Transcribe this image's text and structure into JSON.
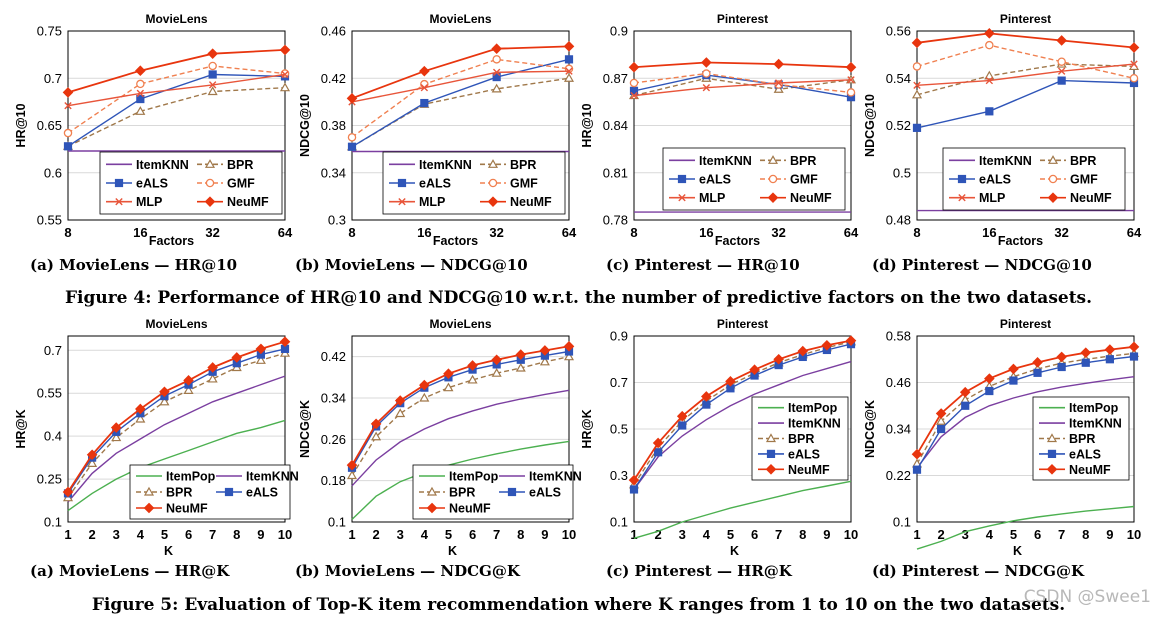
{
  "figure4_caption": "Figure 4: Performance of HR@10 and NDCG@10 w.r.t. the number of predictive factors on the two datasets.",
  "figure5_caption": "Figure 5: Evaluation of Top-K item recommendation where K ranges from 1 to 10 on the two datasets.",
  "watermark": "CSDN @Swee1",
  "subcaptions": [
    "(a) MovieLens — HR@10",
    "(b) MovieLens — NDCG@10",
    "(c) Pinterest — HR@10",
    "(d) Pinterest — NDCG@10",
    "(a) MovieLens — HR@K",
    "(b) MovieLens — NDCG@K",
    "(c) Pinterest — HR@K",
    "(d) Pinterest — NDCG@K"
  ],
  "colors": {
    "ItemPop": "#4cb050",
    "ItemKNN": "#7b3fa0",
    "BPR": "#a0784a",
    "eALS": "#2f55b8",
    "GMF": "#f08050",
    "MLP": "#e8553a",
    "NeuMF": "#e8350e"
  },
  "chart_data": [
    {
      "type": "line",
      "title": "MovieLens",
      "xlabel": "Factors",
      "ylabel": "HR@10",
      "x": [
        8,
        16,
        32,
        64
      ],
      "categorical_x": true,
      "ylim": [
        0.55,
        0.75
      ],
      "yticks": [
        0.55,
        0.6,
        0.65,
        0.7,
        0.75
      ],
      "ytick_labels": [
        "0.55",
        "0.6",
        "0.65",
        "0.7",
        "0.75"
      ],
      "legend": [
        "ItemKNN",
        "BPR",
        "eALS",
        "GMF",
        "MLP",
        "NeuMF"
      ],
      "legend_cols": 2,
      "series": [
        {
          "name": "ItemKNN",
          "values": [
            0.623,
            0.623,
            0.623,
            0.623
          ]
        },
        {
          "name": "BPR",
          "values": [
            0.628,
            0.665,
            0.686,
            0.69
          ]
        },
        {
          "name": "eALS",
          "values": [
            0.628,
            0.678,
            0.704,
            0.702
          ]
        },
        {
          "name": "GMF",
          "values": [
            0.642,
            0.694,
            0.713,
            0.705
          ]
        },
        {
          "name": "MLP",
          "values": [
            0.671,
            0.684,
            0.693,
            0.704
          ]
        },
        {
          "name": "NeuMF",
          "values": [
            0.685,
            0.708,
            0.726,
            0.73
          ]
        }
      ]
    },
    {
      "type": "line",
      "title": "MovieLens",
      "xlabel": "Factors",
      "ylabel": "NDCG@10",
      "x": [
        8,
        16,
        32,
        64
      ],
      "categorical_x": true,
      "ylim": [
        0.3,
        0.46
      ],
      "yticks": [
        0.3,
        0.34,
        0.38,
        0.42,
        0.46
      ],
      "ytick_labels": [
        "0.3",
        "0.34",
        "0.38",
        "0.42",
        "0.46"
      ],
      "legend": [
        "ItemKNN",
        "BPR",
        "eALS",
        "GMF",
        "MLP",
        "NeuMF"
      ],
      "legend_cols": 2,
      "series": [
        {
          "name": "ItemKNN",
          "values": [
            0.358,
            0.358,
            0.358,
            0.358
          ]
        },
        {
          "name": "BPR",
          "values": [
            0.362,
            0.398,
            0.411,
            0.42
          ]
        },
        {
          "name": "eALS",
          "values": [
            0.362,
            0.399,
            0.421,
            0.436
          ]
        },
        {
          "name": "GMF",
          "values": [
            0.37,
            0.415,
            0.436,
            0.428
          ]
        },
        {
          "name": "MLP",
          "values": [
            0.4,
            0.412,
            0.425,
            0.426
          ]
        },
        {
          "name": "NeuMF",
          "values": [
            0.403,
            0.426,
            0.445,
            0.447
          ]
        }
      ]
    },
    {
      "type": "line",
      "title": "Pinterest",
      "xlabel": "Factors",
      "ylabel": "HR@10",
      "x": [
        8,
        16,
        32,
        64
      ],
      "categorical_x": true,
      "ylim": [
        0.78,
        0.9
      ],
      "yticks": [
        0.78,
        0.81,
        0.84,
        0.87,
        0.9
      ],
      "ytick_labels": [
        "0.78",
        "0.81",
        "0.84",
        "0.87",
        "0.9"
      ],
      "legend": [
        "ItemKNN",
        "BPR",
        "eALS",
        "GMF",
        "MLP",
        "NeuMF"
      ],
      "legend_cols": 2,
      "series": [
        {
          "name": "ItemKNN",
          "values": [
            0.785,
            0.785,
            0.785,
            0.785
          ]
        },
        {
          "name": "BPR",
          "values": [
            0.859,
            0.87,
            0.863,
            0.869
          ]
        },
        {
          "name": "eALS",
          "values": [
            0.862,
            0.872,
            0.866,
            0.858
          ]
        },
        {
          "name": "GMF",
          "values": [
            0.867,
            0.873,
            0.866,
            0.861
          ]
        },
        {
          "name": "MLP",
          "values": [
            0.859,
            0.864,
            0.867,
            0.869
          ]
        },
        {
          "name": "NeuMF",
          "values": [
            0.877,
            0.88,
            0.879,
            0.877
          ]
        }
      ]
    },
    {
      "type": "line",
      "title": "Pinterest",
      "xlabel": "Factors",
      "ylabel": "NDCG@10",
      "x": [
        8,
        16,
        32,
        64
      ],
      "categorical_x": true,
      "ylim": [
        0.48,
        0.56
      ],
      "yticks": [
        0.48,
        0.5,
        0.52,
        0.54,
        0.56
      ],
      "ytick_labels": [
        "0.48",
        "0.5",
        "0.52",
        "0.54",
        "0.56"
      ],
      "legend": [
        "ItemKNN",
        "BPR",
        "eALS",
        "GMF",
        "MLP",
        "NeuMF"
      ],
      "legend_cols": 2,
      "series": [
        {
          "name": "ItemKNN",
          "values": [
            0.484,
            0.484,
            0.484,
            0.484
          ]
        },
        {
          "name": "BPR",
          "values": [
            0.533,
            0.541,
            0.546,
            0.545
          ]
        },
        {
          "name": "eALS",
          "values": [
            0.519,
            0.526,
            0.539,
            0.538
          ]
        },
        {
          "name": "GMF",
          "values": [
            0.545,
            0.554,
            0.547,
            0.54
          ]
        },
        {
          "name": "MLP",
          "values": [
            0.537,
            0.539,
            0.543,
            0.546
          ]
        },
        {
          "name": "NeuMF",
          "values": [
            0.555,
            0.559,
            0.556,
            0.553
          ]
        }
      ]
    },
    {
      "type": "line",
      "title": "MovieLens",
      "xlabel": "K",
      "ylabel": "HR@K",
      "x": [
        1,
        2,
        3,
        4,
        5,
        6,
        7,
        8,
        9,
        10
      ],
      "ylim": [
        0.1,
        0.75
      ],
      "yticks": [
        0.1,
        0.25,
        0.4,
        0.55,
        0.7
      ],
      "ytick_labels": [
        "0.1",
        "0.25",
        "0.4",
        "0.55",
        "0.7"
      ],
      "legend": [
        "ItemPop",
        "ItemKNN",
        "BPR",
        "eALS",
        "NeuMF"
      ],
      "legend_cols": 2,
      "series": [
        {
          "name": "ItemPop",
          "values": [
            0.14,
            0.2,
            0.25,
            0.29,
            0.32,
            0.35,
            0.38,
            0.41,
            0.43,
            0.455
          ]
        },
        {
          "name": "ItemKNN",
          "values": [
            0.17,
            0.27,
            0.34,
            0.39,
            0.44,
            0.48,
            0.52,
            0.55,
            0.58,
            0.61
          ]
        },
        {
          "name": "BPR",
          "values": [
            0.185,
            0.305,
            0.395,
            0.46,
            0.52,
            0.56,
            0.6,
            0.64,
            0.665,
            0.69
          ]
        },
        {
          "name": "eALS",
          "values": [
            0.2,
            0.325,
            0.415,
            0.48,
            0.54,
            0.58,
            0.625,
            0.655,
            0.685,
            0.705
          ]
        },
        {
          "name": "NeuMF",
          "values": [
            0.205,
            0.335,
            0.43,
            0.495,
            0.555,
            0.595,
            0.64,
            0.675,
            0.705,
            0.73
          ]
        }
      ]
    },
    {
      "type": "line",
      "title": "MovieLens",
      "xlabel": "K",
      "ylabel": "NDCG@K",
      "x": [
        1,
        2,
        3,
        4,
        5,
        6,
        7,
        8,
        9,
        10
      ],
      "ylim": [
        0.1,
        0.46
      ],
      "yticks": [
        0.1,
        0.18,
        0.26,
        0.34,
        0.42
      ],
      "ytick_labels": [
        "0.1",
        "0.18",
        "0.26",
        "0.34",
        "0.42"
      ],
      "legend": [
        "ItemPop",
        "ItemKNN",
        "BPR",
        "eALS",
        "NeuMF"
      ],
      "legend_cols": 2,
      "series": [
        {
          "name": "ItemPop",
          "values": [
            0.105,
            0.15,
            0.178,
            0.196,
            0.21,
            0.222,
            0.232,
            0.241,
            0.249,
            0.256
          ]
        },
        {
          "name": "ItemKNN",
          "values": [
            0.17,
            0.22,
            0.255,
            0.28,
            0.3,
            0.315,
            0.328,
            0.338,
            0.347,
            0.355
          ]
        },
        {
          "name": "BPR",
          "values": [
            0.19,
            0.265,
            0.31,
            0.34,
            0.36,
            0.375,
            0.388,
            0.398,
            0.41,
            0.42
          ]
        },
        {
          "name": "eALS",
          "values": [
            0.205,
            0.285,
            0.33,
            0.36,
            0.38,
            0.395,
            0.405,
            0.414,
            0.422,
            0.43
          ]
        },
        {
          "name": "NeuMF",
          "values": [
            0.21,
            0.29,
            0.335,
            0.365,
            0.387,
            0.403,
            0.414,
            0.424,
            0.432,
            0.44
          ]
        }
      ]
    },
    {
      "type": "line",
      "title": "Pinterest",
      "xlabel": "K",
      "ylabel": "HR@K",
      "x": [
        1,
        2,
        3,
        4,
        5,
        6,
        7,
        8,
        9,
        10
      ],
      "ylim": [
        0.1,
        0.9
      ],
      "yticks": [
        0.1,
        0.3,
        0.5,
        0.7,
        0.9
      ],
      "ytick_labels": [
        "0.1",
        "0.3",
        "0.5",
        "0.7",
        "0.9"
      ],
      "legend": [
        "ItemPop",
        "ItemKNN",
        "BPR",
        "eALS",
        "NeuMF"
      ],
      "legend_cols": 1,
      "series": [
        {
          "name": "ItemPop",
          "values": [
            0.03,
            0.06,
            0.1,
            0.13,
            0.16,
            0.185,
            0.21,
            0.235,
            0.255,
            0.275
          ]
        },
        {
          "name": "ItemKNN",
          "values": [
            0.24,
            0.38,
            0.47,
            0.54,
            0.6,
            0.65,
            0.69,
            0.73,
            0.76,
            0.79
          ]
        },
        {
          "name": "BPR",
          "values": [
            0.26,
            0.42,
            0.535,
            0.62,
            0.69,
            0.74,
            0.785,
            0.82,
            0.85,
            0.875
          ]
        },
        {
          "name": "eALS",
          "values": [
            0.24,
            0.4,
            0.515,
            0.605,
            0.675,
            0.73,
            0.775,
            0.81,
            0.84,
            0.865
          ]
        },
        {
          "name": "NeuMF",
          "values": [
            0.28,
            0.44,
            0.555,
            0.64,
            0.705,
            0.755,
            0.8,
            0.835,
            0.86,
            0.88
          ]
        }
      ]
    },
    {
      "type": "line",
      "title": "Pinterest",
      "xlabel": "K",
      "ylabel": "NDCG@K",
      "x": [
        1,
        2,
        3,
        4,
        5,
        6,
        7,
        8,
        9,
        10
      ],
      "ylim": [
        0.1,
        0.58
      ],
      "yticks": [
        0.1,
        0.22,
        0.34,
        0.46,
        0.58
      ],
      "ytick_labels": [
        "0.1",
        "0.22",
        "0.34",
        "0.46",
        "0.58"
      ],
      "legend": [
        "ItemPop",
        "ItemKNN",
        "BPR",
        "eALS",
        "NeuMF"
      ],
      "legend_cols": 1,
      "series": [
        {
          "name": "ItemPop",
          "values": [
            0.03,
            0.05,
            0.075,
            0.09,
            0.103,
            0.113,
            0.121,
            0.128,
            0.134,
            0.14
          ]
        },
        {
          "name": "ItemKNN",
          "values": [
            0.24,
            0.32,
            0.37,
            0.4,
            0.42,
            0.436,
            0.448,
            0.458,
            0.467,
            0.475
          ]
        },
        {
          "name": "BPR",
          "values": [
            0.25,
            0.36,
            0.415,
            0.45,
            0.475,
            0.495,
            0.51,
            0.52,
            0.528,
            0.535
          ]
        },
        {
          "name": "eALS",
          "values": [
            0.235,
            0.34,
            0.4,
            0.438,
            0.465,
            0.485,
            0.5,
            0.511,
            0.52,
            0.527
          ]
        },
        {
          "name": "NeuMF",
          "values": [
            0.275,
            0.38,
            0.435,
            0.47,
            0.495,
            0.512,
            0.526,
            0.537,
            0.545,
            0.552
          ]
        }
      ]
    }
  ]
}
